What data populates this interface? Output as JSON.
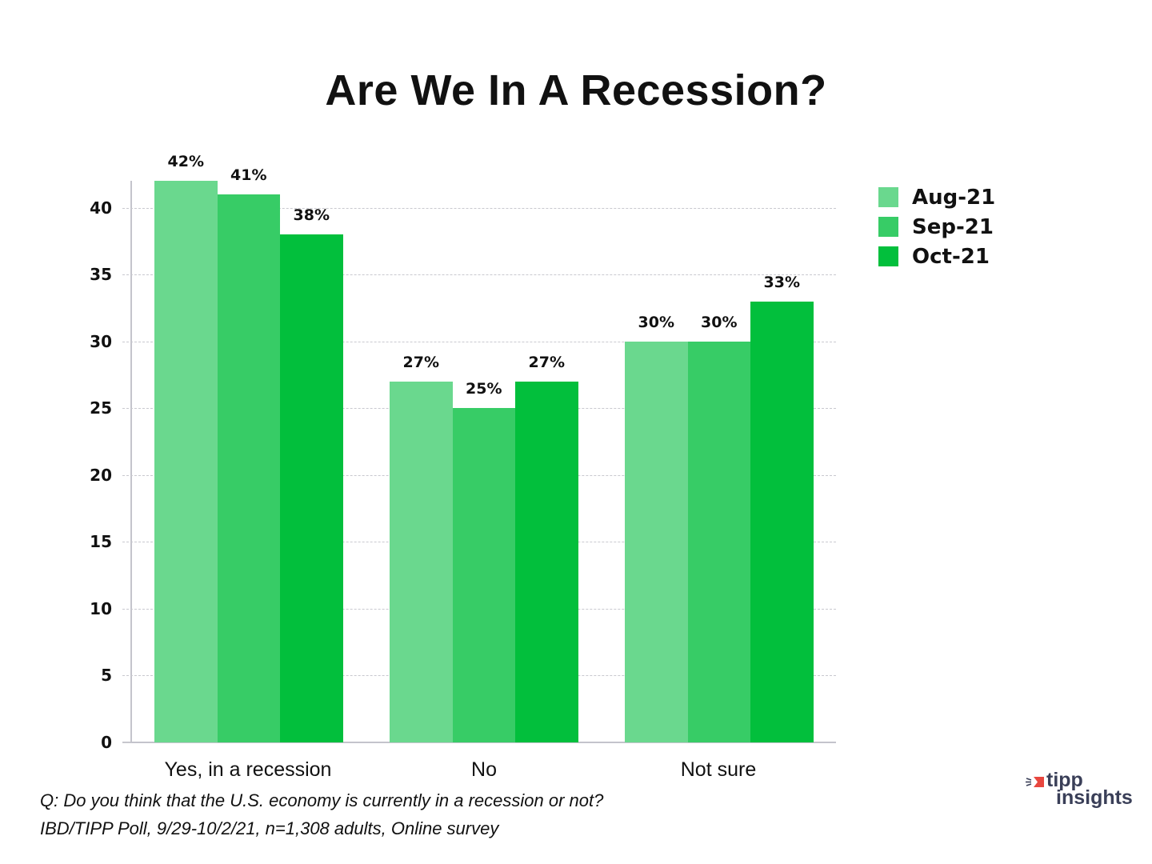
{
  "chart_data": {
    "type": "bar",
    "title": "Are We In A Recession?",
    "xlabel": "",
    "ylabel": "",
    "ylim": [
      0,
      42
    ],
    "yticks": [
      0,
      5,
      10,
      15,
      20,
      25,
      30,
      35,
      40
    ],
    "grid": true,
    "legend_position": "right-top",
    "categories": [
      "Yes, in a recession",
      "No",
      "Not sure"
    ],
    "series": [
      {
        "name": "Aug-21",
        "color": "#6ad88e",
        "values": [
          42,
          27,
          30
        ],
        "labels": [
          "42%",
          "27%",
          "30%"
        ]
      },
      {
        "name": "Sep-21",
        "color": "#37cc66",
        "values": [
          41,
          25,
          30
        ],
        "labels": [
          "41%",
          "25%",
          "30%"
        ]
      },
      {
        "name": "Oct-21",
        "color": "#02bf3c",
        "values": [
          38,
          27,
          33
        ],
        "labels": [
          "38%",
          "27%",
          "33%"
        ]
      }
    ]
  },
  "title": "Are We In A Recession?",
  "yaxis": {
    "ticks": [
      "0",
      "5",
      "10",
      "15",
      "20",
      "25",
      "30",
      "35",
      "40"
    ]
  },
  "xaxis": {
    "labels": [
      "Yes, in a recession",
      "No",
      "Not sure"
    ]
  },
  "legend": {
    "items": [
      "Aug-21",
      "Sep-21",
      "Oct-21"
    ]
  },
  "footnotes": {
    "question": "Q:  Do you think that the U.S. economy is currently in a recession or not?",
    "source": "IBD/TIPP Poll, 9/29-10/2/21, n=1,308 adults, Online survey"
  },
  "logo": {
    "line1": "tipp",
    "line2": "insights",
    "accent_color": "#e8473f",
    "text_color": "#3a3f58"
  }
}
